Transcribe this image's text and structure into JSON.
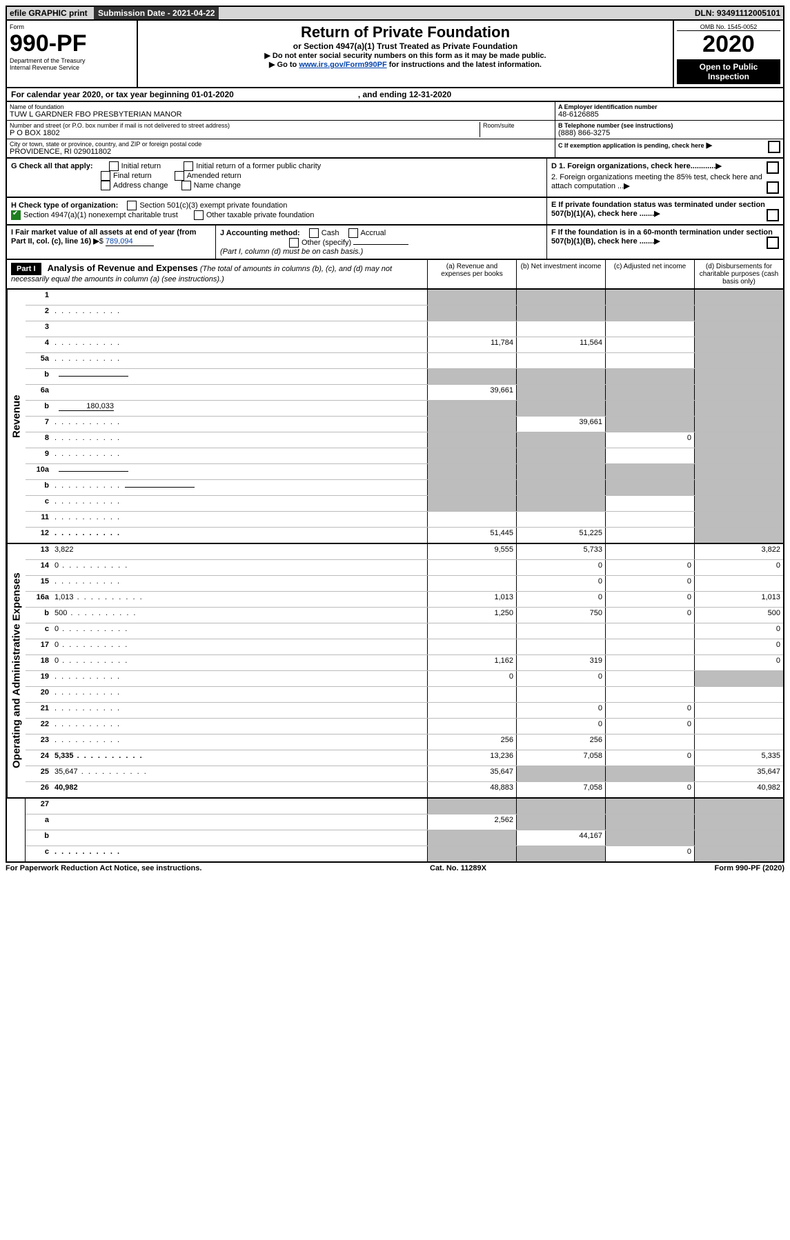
{
  "top": {
    "efile": "efile GRAPHIC print",
    "submission_lbl": "Submission Date - 2021-04-22",
    "dln": "DLN: 93491112005101"
  },
  "header": {
    "form_word": "Form",
    "form_num": "990-PF",
    "dept": "Department of the Treasury",
    "irs": "Internal Revenue Service",
    "title": "Return of Private Foundation",
    "subtitle": "or Section 4947(a)(1) Trust Treated as Private Foundation",
    "note1": "▶ Do not enter social security numbers on this form as it may be made public.",
    "note2_pre": "▶ Go to ",
    "note2_link": "www.irs.gov/Form990PF",
    "note2_post": " for instructions and the latest information.",
    "omb": "OMB No. 1545-0052",
    "year": "2020",
    "open": "Open to Public Inspection"
  },
  "calyear": {
    "pre": "For calendar year 2020, or tax year beginning 01-01-2020",
    "mid": ", and ending 12-31-2020"
  },
  "info": {
    "name_lbl": "Name of foundation",
    "name_val": "TUW L GARDNER FBO PRESBYTERIAN MANOR",
    "ein_lbl": "A Employer identification number",
    "ein_val": "48-6126885",
    "addr_lbl": "Number and street (or P.O. box number if mail is not delivered to street address)",
    "addr_val": "P O BOX 1802",
    "room_lbl": "Room/suite",
    "tel_lbl": "B Telephone number (see instructions)",
    "tel_val": "(888) 866-3275",
    "city_lbl": "City or town, state or province, country, and ZIP or foreign postal code",
    "city_val": "PROVIDENCE, RI  029011802",
    "c_lbl": "C If exemption application is pending, check here",
    "g_lbl": "G Check all that apply:",
    "g_items": [
      "Initial return",
      "Initial return of a former public charity",
      "Final return",
      "Amended return",
      "Address change",
      "Name change"
    ],
    "d1": "D 1. Foreign organizations, check here............",
    "d2": "2. Foreign organizations meeting the 85% test, check here and attach computation ...",
    "h_lbl": "H Check type of organization:",
    "h_501": "Section 501(c)(3) exempt private foundation",
    "h_4947": "Section 4947(a)(1) nonexempt charitable trust",
    "h_other": "Other taxable private foundation",
    "e_lbl": "E If private foundation status was terminated under section 507(b)(1)(A), check here .......",
    "i_lbl": "I Fair market value of all assets at end of year (from Part II, col. (c), line 16)",
    "i_amt": "789,094",
    "j_lbl": "J Accounting method:",
    "j_cash": "Cash",
    "j_accrual": "Accrual",
    "j_other": "Other (specify)",
    "j_note": "(Part I, column (d) must be on cash basis.)",
    "f_lbl": "F If the foundation is in a 60-month termination under section 507(b)(1)(B), check here ......."
  },
  "part1": {
    "badge": "Part I",
    "title": "Analysis of Revenue and Expenses",
    "title_note": "(The total of amounts in columns (b), (c), and (d) may not necessarily equal the amounts in column (a) (see instructions).)",
    "col_a": "(a) Revenue and expenses per books",
    "col_b": "(b) Net investment income",
    "col_c": "(c) Adjusted net income",
    "col_d": "(d) Disbursements for charitable purposes (cash basis only)"
  },
  "sections": {
    "revenue_lbl": "Revenue",
    "expenses_lbl": "Operating and Administrative Expenses"
  },
  "rev_lines": [
    {
      "n": "1",
      "d": "",
      "a": "",
      "b": "",
      "c": "",
      "sa": true,
      "sb": true,
      "sc": true,
      "sd": true
    },
    {
      "n": "2",
      "d": "",
      "a": "",
      "b": "",
      "c": "",
      "sa": true,
      "sb": true,
      "sc": true,
      "sd": true,
      "dots": true
    },
    {
      "n": "3",
      "d": "",
      "a": "",
      "b": "",
      "c": "",
      "sd": true
    },
    {
      "n": "4",
      "d": "",
      "a": "11,784",
      "b": "11,564",
      "c": "",
      "sd": true,
      "dots": true
    },
    {
      "n": "5a",
      "d": "",
      "a": "",
      "b": "",
      "c": "",
      "sd": true,
      "dots": true
    },
    {
      "n": "b",
      "d": "",
      "a": "",
      "b": "",
      "c": "",
      "sa": true,
      "sb": true,
      "sc": true,
      "sd": true,
      "inline": true
    },
    {
      "n": "6a",
      "d": "",
      "a": "39,661",
      "b": "",
      "c": "",
      "sb": true,
      "sc": true,
      "sd": true
    },
    {
      "n": "b",
      "d": "",
      "a": "",
      "b": "",
      "c": "",
      "sa": true,
      "sb": true,
      "sc": true,
      "sd": true,
      "inline_val": "180,033"
    },
    {
      "n": "7",
      "d": "",
      "a": "",
      "b": "39,661",
      "c": "",
      "sa": true,
      "sc": true,
      "sd": true,
      "dots": true
    },
    {
      "n": "8",
      "d": "",
      "a": "",
      "b": "",
      "c": "0",
      "sa": true,
      "sb": true,
      "sd": true,
      "dots": true
    },
    {
      "n": "9",
      "d": "",
      "a": "",
      "b": "",
      "c": "",
      "sa": true,
      "sb": true,
      "sd": true,
      "dots": true
    },
    {
      "n": "10a",
      "d": "",
      "a": "",
      "b": "",
      "c": "",
      "sa": true,
      "sb": true,
      "sc": true,
      "sd": true,
      "inline": true
    },
    {
      "n": "b",
      "d": "",
      "a": "",
      "b": "",
      "c": "",
      "sa": true,
      "sb": true,
      "sc": true,
      "sd": true,
      "inline": true,
      "dots": true
    },
    {
      "n": "c",
      "d": "",
      "a": "",
      "b": "",
      "c": "",
      "sa": true,
      "sb": true,
      "sd": true,
      "dots": true
    },
    {
      "n": "11",
      "d": "",
      "a": "",
      "b": "",
      "c": "",
      "sd": true,
      "dots": true
    },
    {
      "n": "12",
      "d": "",
      "a": "51,445",
      "b": "51,225",
      "c": "",
      "bold": true,
      "sd": true,
      "dots": true
    }
  ],
  "exp_lines": [
    {
      "n": "13",
      "d": "3,822",
      "a": "9,555",
      "b": "5,733",
      "c": ""
    },
    {
      "n": "14",
      "d": "0",
      "a": "",
      "b": "0",
      "c": "0",
      "dots": true
    },
    {
      "n": "15",
      "d": "",
      "a": "",
      "b": "0",
      "c": "0",
      "dots": true
    },
    {
      "n": "16a",
      "d": "1,013",
      "a": "1,013",
      "b": "0",
      "c": "0",
      "dots": true
    },
    {
      "n": "b",
      "d": "500",
      "a": "1,250",
      "b": "750",
      "c": "0",
      "dots": true
    },
    {
      "n": "c",
      "d": "0",
      "a": "",
      "b": "",
      "c": "",
      "dots": true
    },
    {
      "n": "17",
      "d": "0",
      "a": "",
      "b": "",
      "c": "",
      "dots": true
    },
    {
      "n": "18",
      "d": "0",
      "a": "1,162",
      "b": "319",
      "c": "",
      "dots": true
    },
    {
      "n": "19",
      "d": "",
      "a": "0",
      "b": "0",
      "c": "",
      "sd": true,
      "dots": true
    },
    {
      "n": "20",
      "d": "",
      "a": "",
      "b": "",
      "c": "",
      "dots": true
    },
    {
      "n": "21",
      "d": "",
      "a": "",
      "b": "0",
      "c": "0",
      "dots": true
    },
    {
      "n": "22",
      "d": "",
      "a": "",
      "b": "0",
      "c": "0",
      "dots": true
    },
    {
      "n": "23",
      "d": "",
      "a": "256",
      "b": "256",
      "c": "",
      "dots": true
    },
    {
      "n": "24",
      "d": "5,335",
      "a": "13,236",
      "b": "7,058",
      "c": "0",
      "bold": true,
      "dots": true
    },
    {
      "n": "25",
      "d": "35,647",
      "a": "35,647",
      "b": "",
      "c": "",
      "sb": true,
      "sc": true,
      "dots": true
    },
    {
      "n": "26",
      "d": "40,982",
      "a": "48,883",
      "b": "7,058",
      "c": "0",
      "bold": true
    }
  ],
  "sub_lines": [
    {
      "n": "27",
      "d": "",
      "a": "",
      "b": "",
      "c": "",
      "sa": true,
      "sb": true,
      "sc": true,
      "sd": true
    },
    {
      "n": "a",
      "d": "",
      "a": "2,562",
      "b": "",
      "c": "",
      "bold": true,
      "sb": true,
      "sc": true,
      "sd": true
    },
    {
      "n": "b",
      "d": "",
      "a": "",
      "b": "44,167",
      "c": "",
      "bold": true,
      "sa": true,
      "sc": true,
      "sd": true
    },
    {
      "n": "c",
      "d": "",
      "a": "",
      "b": "",
      "c": "0",
      "bold": true,
      "sa": true,
      "sb": true,
      "sd": true,
      "dots": true
    }
  ],
  "footer": {
    "left": "For Paperwork Reduction Act Notice, see instructions.",
    "mid": "Cat. No. 11289X",
    "right": "Form 990-PF (2020)"
  }
}
